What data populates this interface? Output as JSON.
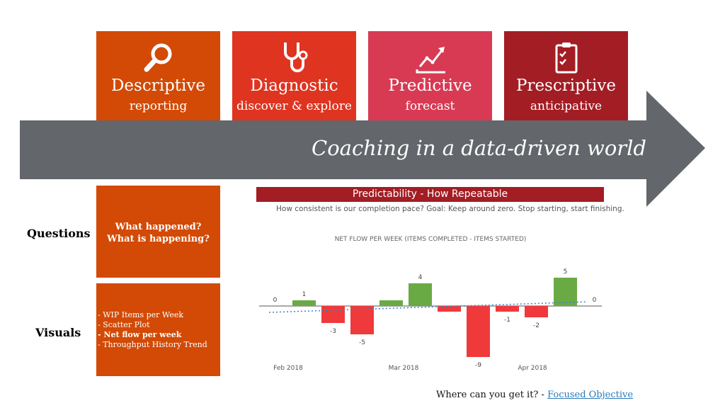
{
  "tiles": [
    {
      "title": "Descriptive",
      "subtitle": "reporting",
      "icon": "magnifier-icon",
      "color": "#d24a06"
    },
    {
      "title": "Diagnostic",
      "subtitle": "discover & explore",
      "icon": "stethoscope-icon",
      "color": "#df3420"
    },
    {
      "title": "Predictive",
      "subtitle": "forecast",
      "icon": "trend-chart-icon",
      "color": "#d83a54"
    },
    {
      "title": "Prescriptive",
      "subtitle": "anticipative",
      "icon": "clipboard-checklist-icon",
      "color": "#a31d24"
    }
  ],
  "arrow": {
    "title": "Coaching in a data-driven world",
    "color": "#63666a"
  },
  "questions": {
    "label": "Questions",
    "line1": "What happened?",
    "line2": "What is happening?"
  },
  "visuals": {
    "label": "Visuals",
    "items": [
      {
        "text": "- WIP Items per Week",
        "bold": false
      },
      {
        "text": "- Scatter Plot",
        "bold": false
      },
      {
        "text": "- Net flow per week",
        "bold": true
      },
      {
        "text": "- Throughput History Trend",
        "bold": false
      }
    ]
  },
  "panel": {
    "header": "Predictability - How Repeatable",
    "subheader": "How consistent is our completion pace? Goal: Keep around zero. Stop starting, start finishing."
  },
  "chart_data": {
    "type": "bar",
    "title": "NET FLOW PER WEEK (ITEMS COMPLETED - ITEMS STARTED)",
    "values": [
      0,
      1,
      -3,
      -5,
      1,
      4,
      -1,
      -9,
      -1,
      -2,
      5,
      0
    ],
    "data_labels": [
      "0",
      "1",
      "-3",
      "-5",
      "",
      "4",
      "",
      "-9",
      "-1",
      "-2",
      "5",
      "0"
    ],
    "x_tick_labels": [
      "Feb 2018",
      "Mar 2018",
      "Apr 2018"
    ],
    "positive_color": "#6aaa44",
    "negative_color": "#f0393b",
    "trend": "dotted-line"
  },
  "footer": {
    "prefix": "Where can you get it? - ",
    "link_text": "Focused Objective"
  }
}
